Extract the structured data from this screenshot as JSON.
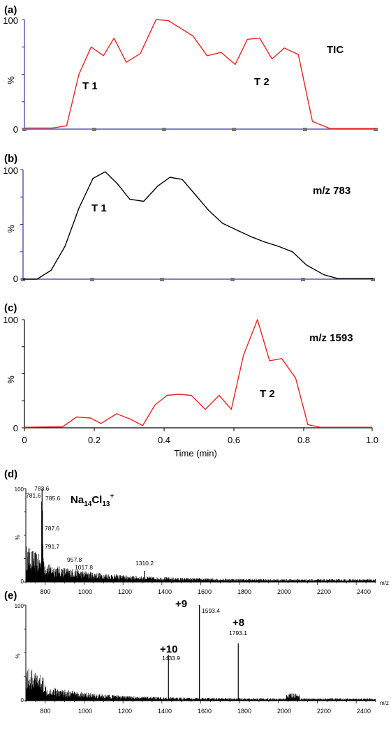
{
  "colors": {
    "red": "#ee2222",
    "black": "#000000",
    "axis_blue": "#3333aa",
    "tick_gray": "#777777"
  },
  "time_axis": {
    "ticks": [
      "0",
      "0.2",
      "0.4",
      "0.6",
      "0.8",
      "1.0"
    ],
    "label": "Time (min)"
  },
  "chart_data": [
    {
      "type": "line",
      "panel": "(a)",
      "title": "TIC",
      "ylabel": "%",
      "yticks": [
        "100",
        "0"
      ],
      "ylim": [
        0,
        100
      ],
      "xlim": [
        0,
        1.0
      ],
      "annotations": [
        "T 1",
        "T 2"
      ],
      "series": [
        {
          "color": "#ee2222",
          "x": [
            0.0,
            0.08,
            0.12,
            0.155,
            0.19,
            0.225,
            0.255,
            0.29,
            0.33,
            0.375,
            0.41,
            0.48,
            0.52,
            0.56,
            0.6,
            0.635,
            0.67,
            0.705,
            0.74,
            0.78,
            0.82,
            0.87,
            1.0
          ],
          "y": [
            1,
            1,
            3,
            50,
            75,
            67,
            83,
            61,
            69,
            100,
            99,
            85,
            67,
            70,
            59,
            82,
            83,
            64,
            74,
            68,
            7,
            0.5,
            0.5
          ]
        }
      ]
    },
    {
      "type": "line",
      "panel": "(b)",
      "title": "m/z 783",
      "ylabel": "%",
      "yticks": [
        "100",
        "0"
      ],
      "ylim": [
        0,
        100
      ],
      "xlim": [
        0,
        1.0
      ],
      "annotations": [
        "T 1"
      ],
      "series": [
        {
          "color": "#000000",
          "x": [
            0.0,
            0.04,
            0.08,
            0.12,
            0.16,
            0.2,
            0.235,
            0.27,
            0.305,
            0.345,
            0.385,
            0.42,
            0.455,
            0.49,
            0.53,
            0.57,
            0.61,
            0.65,
            0.69,
            0.73,
            0.77,
            0.81,
            0.86,
            0.9,
            1.0
          ],
          "y": [
            0,
            0,
            8,
            30,
            65,
            92,
            98,
            87,
            73,
            71,
            85,
            93,
            91,
            78,
            63,
            51,
            45,
            39,
            34,
            30,
            25,
            13,
            4,
            0.5,
            0.5
          ]
        }
      ]
    },
    {
      "type": "line",
      "panel": "(c)",
      "title": "m/z 1593",
      "ylabel": "%",
      "yticks": [
        "100",
        "0"
      ],
      "ylim": [
        0,
        100
      ],
      "xlim": [
        0,
        1.0
      ],
      "annotations": [
        "T 2"
      ],
      "series": [
        {
          "color": "#ee2222",
          "x": [
            0.0,
            0.11,
            0.15,
            0.19,
            0.22,
            0.265,
            0.305,
            0.34,
            0.375,
            0.41,
            0.445,
            0.48,
            0.52,
            0.56,
            0.595,
            0.63,
            0.67,
            0.705,
            0.74,
            0.78,
            0.815,
            0.85,
            1.0
          ],
          "y": [
            0.5,
            1,
            10,
            9,
            4,
            13,
            8,
            2,
            21,
            30,
            31,
            30,
            17,
            30,
            17,
            67,
            100,
            62,
            64,
            46,
            3,
            0.5,
            0.5
          ]
        }
      ]
    },
    {
      "type": "line",
      "panel": "(d)",
      "ylabel": "%",
      "yticks": [
        "100",
        "0"
      ],
      "xlabel": "m/z",
      "ylim": [
        0,
        100
      ],
      "xlim": [
        700,
        2500
      ],
      "xticks": [
        "800",
        "1000",
        "1200",
        "1400",
        "1600",
        "1800",
        "2000",
        "2200",
        "2400"
      ],
      "series": [
        {
          "color": "#000000",
          "x": [
            700,
            2500
          ],
          "y": [
            0,
            0
          ]
        }
      ],
      "peaks": [
        {
          "mz": 783.6,
          "intensity": 100,
          "label": "783.6"
        },
        {
          "mz": 781.6,
          "intensity": 86,
          "label": "781.6"
        },
        {
          "mz": 785.6,
          "intensity": 76,
          "label": "785.6"
        },
        {
          "mz": 787.6,
          "intensity": 40,
          "label": "787.6"
        },
        {
          "mz": 791.7,
          "intensity": 22,
          "label": "791.7"
        },
        {
          "mz": 957.8,
          "intensity": 12,
          "label": "957.8"
        },
        {
          "mz": 1017.8,
          "intensity": 8,
          "label": "1017.8"
        },
        {
          "mz": 1310.2,
          "intensity": 12,
          "label": "1310.2"
        }
      ],
      "annotation": {
        "text": "Na",
        "sub1": "14",
        "mid": "Cl",
        "sub2": "13",
        "sup": "+"
      }
    },
    {
      "type": "line",
      "panel": "(e)",
      "ylabel": "%",
      "yticks": [
        "100",
        "0"
      ],
      "xlabel": "m/z",
      "ylim": [
        0,
        100
      ],
      "xlim": [
        700,
        2500
      ],
      "xticks": [
        "800",
        "1000",
        "1200",
        "1400",
        "1600",
        "1800",
        "2000",
        "2200",
        "2400"
      ],
      "series": [
        {
          "color": "#000000",
          "x": [
            700,
            2500
          ],
          "y": [
            0,
            0
          ]
        }
      ],
      "peaks": [
        {
          "mz": 1433.9,
          "intensity": 48,
          "label": "1433.9",
          "charge": "+10"
        },
        {
          "mz": 1593.4,
          "intensity": 100,
          "label": "1593.4",
          "charge": "+9"
        },
        {
          "mz": 1793.1,
          "intensity": 60,
          "label": "1793.1",
          "charge": "+8"
        }
      ]
    }
  ]
}
